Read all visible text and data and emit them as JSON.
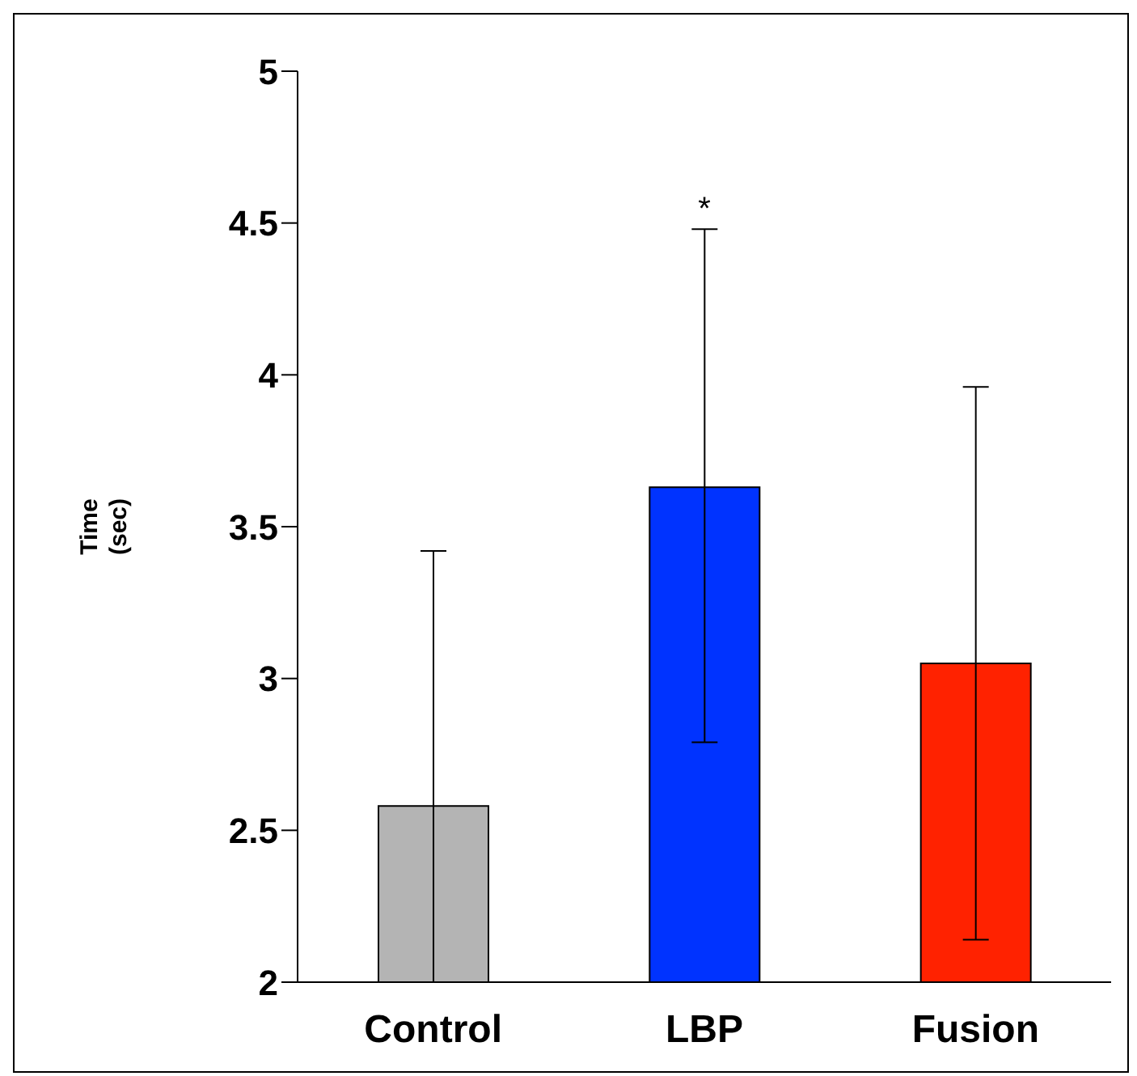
{
  "chart_data": {
    "type": "bar",
    "ylabel": "Time\n(sec)",
    "categories": [
      "Control",
      "LBP",
      "Fusion"
    ],
    "values": [
      2.58,
      3.63,
      3.05
    ],
    "colors": [
      "#b4b4b4",
      "#0033ff",
      "#ff2200"
    ],
    "errors": [
      [
        2,
        3.42
      ],
      [
        2.79,
        4.48
      ],
      [
        2.14,
        3.96
      ]
    ],
    "ylim": [
      2,
      5
    ],
    "yticks": [
      2,
      2.5,
      3,
      3.5,
      4,
      4.5,
      5
    ],
    "grid": false,
    "legend": false,
    "annotations": [
      "*"
    ]
  }
}
